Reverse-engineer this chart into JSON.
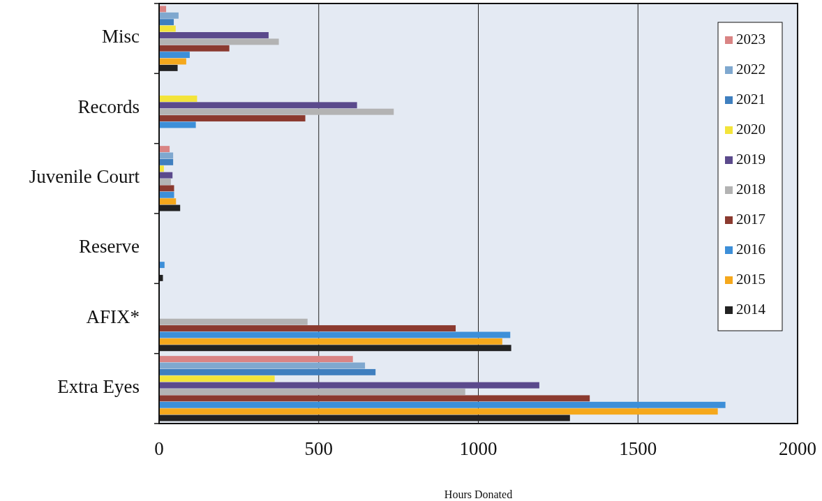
{
  "chart_data": {
    "type": "bar",
    "orientation": "horizontal",
    "xlabel": "Hours Donated",
    "categories": [
      "Misc",
      "Records",
      "Juvenile Court",
      "Reserve",
      "AFIX*",
      "Extra Eyes"
    ],
    "series": [
      {
        "name": "2023",
        "color": "#d98484",
        "values": [
          22,
          null,
          33,
          null,
          null,
          607
        ]
      },
      {
        "name": "2022",
        "color": "#7fa8cf",
        "values": [
          61,
          null,
          44,
          null,
          null,
          645
        ]
      },
      {
        "name": "2021",
        "color": "#3f7fbf",
        "values": [
          46,
          null,
          44,
          null,
          null,
          678
        ]
      },
      {
        "name": "2020",
        "color": "#f3e43a",
        "values": [
          52,
          119,
          15,
          null,
          null,
          362
        ]
      },
      {
        "name": "2019",
        "color": "#5b4a8c",
        "values": [
          343,
          620,
          42,
          null,
          null,
          1191
        ]
      },
      {
        "name": "2018",
        "color": "#b3b3b3",
        "values": [
          375,
          735,
          37,
          null,
          465,
          959
        ]
      },
      {
        "name": "2017",
        "color": "#8b3a2f",
        "values": [
          220,
          458,
          47,
          null,
          929,
          1349
        ]
      },
      {
        "name": "2016",
        "color": "#3d8fd8",
        "values": [
          96,
          115,
          47,
          17,
          1100,
          1774
        ]
      },
      {
        "name": "2015",
        "color": "#f5a81c",
        "values": [
          85,
          null,
          53,
          null,
          1075,
          1750
        ]
      },
      {
        "name": "2014",
        "color": "#222222",
        "values": [
          58,
          null,
          66,
          12,
          1103,
          1287
        ]
      }
    ],
    "xlim": [
      0,
      2000
    ],
    "xticks": [
      0,
      500,
      1000,
      1500,
      2000
    ],
    "grid": "x",
    "legend": "top right"
  }
}
